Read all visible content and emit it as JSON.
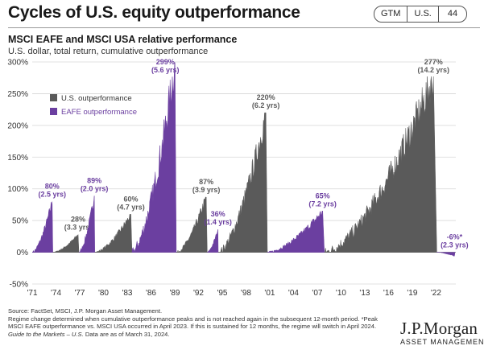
{
  "header": {
    "title": "Cycles of U.S. equity outperformance",
    "tags": [
      "GTM",
      "U.S.",
      "44"
    ]
  },
  "chart_data": {
    "type": "area",
    "title": "MSCI EAFE and MSCI USA relative performance",
    "subtitle": "U.S. dollar, total return, cumulative outperformance",
    "ylim": [
      -50,
      300
    ],
    "yticks": [
      -50,
      0,
      50,
      100,
      150,
      200,
      250,
      300
    ],
    "ytick_labels": [
      "-50%",
      "0%",
      "50%",
      "100%",
      "150%",
      "200%",
      "250%",
      "300%"
    ],
    "xlim": [
      1971,
      2024.5
    ],
    "xticks": [
      1971,
      1974,
      1977,
      1980,
      1983,
      1986,
      1989,
      1992,
      1995,
      1998,
      2001,
      2004,
      2007,
      2010,
      2013,
      2016,
      2019,
      2022
    ],
    "xtick_labels": [
      "'71",
      "'74",
      "'77",
      "'80",
      "'83",
      "'86",
      "'89",
      "'92",
      "'95",
      "'98",
      "'01",
      "'04",
      "'07",
      "'10",
      "'13",
      "'16",
      "'19",
      "'22"
    ],
    "grid": true,
    "legend_position": "top-left",
    "colors": {
      "us": "#5a5a5a",
      "eafe": "#6b3fa0",
      "grid": "#d6d6d6"
    },
    "legend": [
      {
        "name": "U.S. outperformance",
        "color": "#5a5a5a"
      },
      {
        "name": "EAFE outperformance",
        "color": "#6b3fa0"
      }
    ],
    "episodes": [
      {
        "series": "EAFE",
        "start": 1971.0,
        "end": 1973.6,
        "peak": 80,
        "label": "80%",
        "duration": "(2.5 yrs)"
      },
      {
        "series": "US",
        "start": 1973.6,
        "end": 1976.9,
        "peak": 28,
        "label": "28%",
        "duration": "(3.3 yrs)"
      },
      {
        "series": "EAFE",
        "start": 1976.9,
        "end": 1978.9,
        "peak": 89,
        "label": "89%",
        "duration": "(2.0 yrs)"
      },
      {
        "series": "US",
        "start": 1978.9,
        "end": 1983.6,
        "peak": 60,
        "label": "60%",
        "duration": "(4.7 yrs)"
      },
      {
        "series": "EAFE",
        "start": 1983.6,
        "end": 1989.2,
        "peak": 299,
        "label": "299%",
        "duration": "(5.6 yrs)"
      },
      {
        "series": "US",
        "start": 1989.2,
        "end": 1993.1,
        "peak": 87,
        "label": "87%",
        "duration": "(3.9 yrs)"
      },
      {
        "series": "EAFE",
        "start": 1993.1,
        "end": 1994.5,
        "peak": 36,
        "label": "36%",
        "duration": "(1.4 yrs)"
      },
      {
        "series": "US",
        "start": 1994.5,
        "end": 2000.7,
        "peak": 220,
        "label": "220%",
        "duration": "(6.2 yrs)"
      },
      {
        "series": "EAFE",
        "start": 2000.7,
        "end": 2007.9,
        "peak": 65,
        "label": "65%",
        "duration": "(7.2 yrs)"
      },
      {
        "series": "US",
        "start": 2007.9,
        "end": 2022.1,
        "peak": 277,
        "label": "277%",
        "duration": "(14.2 yrs)"
      },
      {
        "series": "EAFE",
        "start": 2022.1,
        "end": 2024.4,
        "peak": -6,
        "label": "-6%",
        "marker": "*",
        "duration": "(2.3 yrs)"
      }
    ]
  },
  "footnote": {
    "lines": [
      "Source: FactSet, MSCI, J.P. Morgan Asset Management.",
      "Regime change determined when cumulative outperformance peaks and is not reached again in the subsequent 12-month period. *Peak MSCI EAFE outperformance vs. MSCI USA occurred in April 2023. If this is sustained for 12 months, the regime will switch in April 2024."
    ],
    "guide": "Guide to the Markets – U.S.",
    "data_date": " Data are as of March 31, 2024."
  },
  "logo": {
    "name": "J.P.Morgan",
    "sub": "ASSET MANAGEMENT"
  }
}
